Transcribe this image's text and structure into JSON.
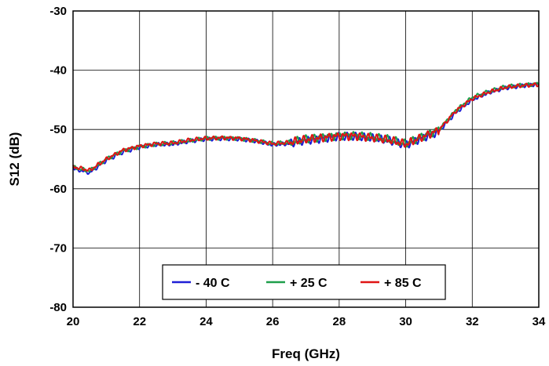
{
  "chart_data": {
    "type": "line",
    "title": "",
    "xlabel": "Freq (GHz)",
    "ylabel": "S12 (dB)",
    "xlim": [
      20,
      34
    ],
    "ylim": [
      -80,
      -30
    ],
    "xticks": [
      "20",
      "22",
      "24",
      "26",
      "28",
      "30",
      "32",
      "34"
    ],
    "yticks": [
      "-30",
      "-40",
      "-50",
      "-60",
      "-70",
      "-80"
    ],
    "grid": true,
    "legend_position": "bottom-center",
    "x": [
      20.0,
      20.5,
      21.0,
      21.5,
      22.0,
      22.5,
      23.0,
      23.5,
      24.0,
      24.5,
      25.0,
      25.5,
      26.0,
      26.5,
      27.0,
      27.5,
      28.0,
      28.5,
      29.0,
      29.5,
      30.0,
      30.5,
      31.0,
      31.5,
      32.0,
      32.5,
      33.0,
      33.5,
      34.0
    ],
    "series": [
      {
        "name": "- 40 C",
        "color": "#1f1fd6",
        "values": [
          -56.6,
          -57.3,
          -55.2,
          -53.8,
          -53.0,
          -52.6,
          -52.5,
          -52.0,
          -51.6,
          -51.5,
          -51.6,
          -52.0,
          -52.6,
          -52.4,
          -51.8,
          -51.5,
          -51.1,
          -51.2,
          -51.5,
          -51.9,
          -52.6,
          -51.4,
          -50.3,
          -47.2,
          -45.0,
          -43.8,
          -43.0,
          -42.6,
          -42.3
        ]
      },
      {
        "name": "+ 25 C",
        "color": "#1e9e4a",
        "values": [
          -56.4,
          -57.0,
          -55.0,
          -53.6,
          -52.9,
          -52.5,
          -52.3,
          -51.9,
          -51.5,
          -51.4,
          -51.5,
          -51.9,
          -52.4,
          -52.2,
          -51.6,
          -51.3,
          -51.0,
          -51.0,
          -51.3,
          -51.7,
          -52.4,
          -51.2,
          -50.0,
          -46.8,
          -44.6,
          -43.6,
          -42.8,
          -42.5,
          -42.3
        ]
      },
      {
        "name": "+ 85 C",
        "color": "#e01414",
        "values": [
          -56.3,
          -56.9,
          -55.0,
          -53.5,
          -52.8,
          -52.4,
          -52.3,
          -51.8,
          -51.5,
          -51.4,
          -51.5,
          -51.9,
          -52.4,
          -52.2,
          -51.7,
          -51.4,
          -51.1,
          -51.1,
          -51.4,
          -51.8,
          -52.5,
          -51.3,
          -50.1,
          -46.9,
          -44.8,
          -43.7,
          -42.9,
          -42.6,
          -42.4
        ]
      }
    ]
  }
}
